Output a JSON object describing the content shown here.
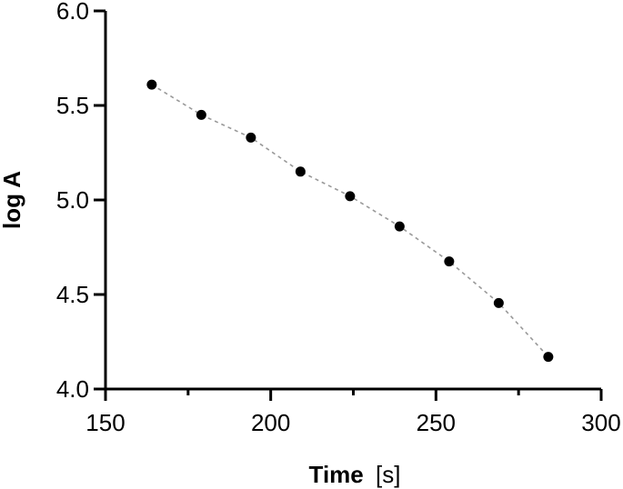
{
  "chart_data": {
    "type": "scatter",
    "xlabel_main": "Time",
    "xlabel_unit": "[s]",
    "ylabel": "log A",
    "xlim": [
      150,
      300
    ],
    "ylim": [
      4.0,
      6.0
    ],
    "x_ticks": [
      "150",
      "200",
      "250",
      "300"
    ],
    "x_tick_values": [
      150,
      200,
      250,
      300
    ],
    "x_minor_tick_values": [
      175,
      225,
      275
    ],
    "y_ticks": [
      "4.0",
      "4.5",
      "5.0",
      "5.5",
      "6.0"
    ],
    "y_tick_values": [
      4.0,
      4.5,
      5.0,
      5.5,
      6.0
    ],
    "grid": false,
    "trend_line": "dashed",
    "series": [
      {
        "x": [
          164,
          179,
          194,
          209,
          224,
          239,
          254,
          269,
          284
        ],
        "y": [
          5.61,
          5.45,
          5.33,
          5.15,
          5.02,
          4.86,
          4.675,
          4.455,
          4.17
        ]
      }
    ],
    "colors": {
      "marker": "#000000",
      "trend": "#999999",
      "axis": "#000000"
    }
  }
}
